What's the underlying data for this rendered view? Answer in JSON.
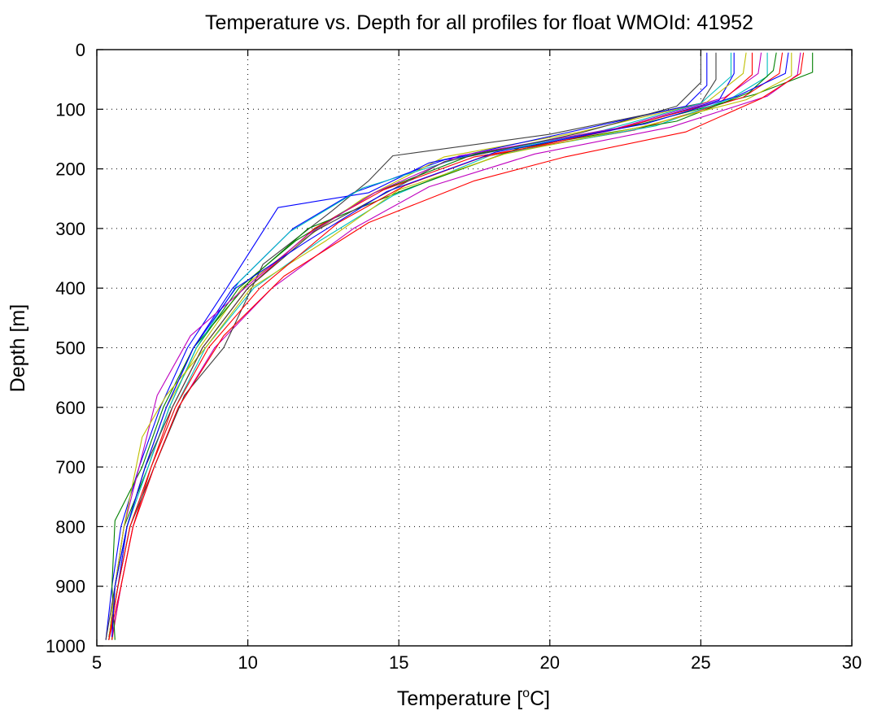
{
  "chart_data": {
    "type": "line",
    "title": "Temperature vs. Depth for all profiles for float WMOId: 41952",
    "xlabel_prefix": "Temperature [",
    "xlabel_sup": "o",
    "xlabel_suffix": "C]",
    "ylabel": "Depth [m]",
    "xlim": [
      5,
      30
    ],
    "ylim": [
      0,
      1000
    ],
    "y_reversed": true,
    "xticks": [
      5,
      10,
      15,
      20,
      25,
      30
    ],
    "yticks": [
      0,
      100,
      200,
      300,
      400,
      500,
      600,
      700,
      800,
      900,
      1000
    ],
    "xtick_labels": [
      "5",
      "10",
      "15",
      "20",
      "25",
      "30"
    ],
    "ytick_labels": [
      "0",
      "100",
      "200",
      "300",
      "400",
      "500",
      "600",
      "700",
      "800",
      "900",
      "1000"
    ],
    "grid": true,
    "legend": "none",
    "colors": [
      "#0000ff",
      "#008000",
      "#ff0000",
      "#00bfbf",
      "#bf00bf",
      "#bfbf00",
      "#404040"
    ],
    "series": [
      {
        "color": "#0000ff",
        "values": [
          [
            26.1,
            5
          ],
          [
            26.1,
            40
          ],
          [
            25.6,
            85
          ],
          [
            22.5,
            130
          ],
          [
            16.5,
            185
          ],
          [
            13.5,
            240
          ],
          [
            11.5,
            300
          ],
          [
            9.5,
            400
          ],
          [
            8.2,
            500
          ],
          [
            7.3,
            600
          ],
          [
            6.6,
            700
          ],
          [
            6.0,
            800
          ],
          [
            5.7,
            900
          ],
          [
            5.4,
            990
          ]
        ]
      },
      {
        "color": "#008000",
        "values": [
          [
            28.7,
            5
          ],
          [
            28.7,
            38
          ],
          [
            26.8,
            75
          ],
          [
            23.0,
            125
          ],
          [
            17.5,
            175
          ],
          [
            14.2,
            240
          ],
          [
            11.6,
            320
          ],
          [
            9.7,
            400
          ],
          [
            8.3,
            500
          ],
          [
            7.4,
            600
          ],
          [
            6.7,
            700
          ],
          [
            5.9,
            800
          ],
          [
            5.6,
            900
          ],
          [
            5.5,
            990
          ]
        ]
      },
      {
        "color": "#ff0000",
        "values": [
          [
            27.7,
            5
          ],
          [
            27.6,
            40
          ],
          [
            26.4,
            80
          ],
          [
            22.8,
            135
          ],
          [
            17.5,
            180
          ],
          [
            14.5,
            235
          ],
          [
            12.2,
            300
          ],
          [
            10.0,
            400
          ],
          [
            8.5,
            500
          ],
          [
            7.5,
            600
          ],
          [
            6.8,
            700
          ],
          [
            6.2,
            800
          ],
          [
            5.8,
            900
          ],
          [
            5.5,
            990
          ]
        ]
      },
      {
        "color": "#00bfbf",
        "values": [
          [
            27.2,
            5
          ],
          [
            27.2,
            45
          ],
          [
            26.0,
            82
          ],
          [
            23.5,
            128
          ],
          [
            18.0,
            178
          ],
          [
            14.8,
            245
          ],
          [
            12.4,
            320
          ],
          [
            10.2,
            400
          ],
          [
            8.6,
            500
          ],
          [
            7.6,
            600
          ],
          [
            6.8,
            700
          ],
          [
            6.1,
            800
          ],
          [
            5.7,
            900
          ],
          [
            5.4,
            985
          ]
        ]
      },
      {
        "color": "#bf00bf",
        "values": [
          [
            28.3,
            5
          ],
          [
            28.2,
            42
          ],
          [
            27.2,
            78
          ],
          [
            24.0,
            130
          ],
          [
            19.5,
            175
          ],
          [
            16.0,
            230
          ],
          [
            13.5,
            300
          ],
          [
            10.8,
            400
          ],
          [
            8.9,
            500
          ],
          [
            7.7,
            600
          ],
          [
            6.9,
            700
          ],
          [
            6.2,
            800
          ],
          [
            5.8,
            900
          ],
          [
            5.5,
            985
          ]
        ]
      },
      {
        "color": "#bfbf00",
        "values": [
          [
            26.5,
            5
          ],
          [
            26.4,
            40
          ],
          [
            25.2,
            88
          ],
          [
            21.0,
            138
          ],
          [
            16.5,
            180
          ],
          [
            13.8,
            250
          ],
          [
            11.8,
            320
          ],
          [
            9.8,
            400
          ],
          [
            8.4,
            500
          ],
          [
            7.3,
            600
          ],
          [
            6.6,
            700
          ],
          [
            6.0,
            800
          ],
          [
            5.6,
            900
          ],
          [
            5.4,
            990
          ]
        ]
      },
      {
        "color": "#404040",
        "values": [
          [
            25.5,
            5
          ],
          [
            25.5,
            50
          ],
          [
            25.0,
            90
          ],
          [
            20.0,
            142
          ],
          [
            14.8,
            178
          ],
          [
            14.0,
            220
          ],
          [
            12.8,
            270
          ],
          [
            10.5,
            360
          ],
          [
            9.2,
            500
          ],
          [
            7.9,
            580
          ],
          [
            6.9,
            700
          ],
          [
            6.1,
            800
          ],
          [
            5.7,
            900
          ],
          [
            5.4,
            985
          ]
        ]
      },
      {
        "color": "#0000ff",
        "values": [
          [
            25.2,
            5
          ],
          [
            25.2,
            60
          ],
          [
            24.5,
            95
          ],
          [
            20.5,
            140
          ],
          [
            16.0,
            190
          ],
          [
            14.0,
            240
          ],
          [
            11.0,
            265
          ],
          [
            9.3,
            400
          ],
          [
            8.0,
            500
          ],
          [
            7.1,
            600
          ],
          [
            6.4,
            700
          ],
          [
            5.8,
            800
          ],
          [
            5.5,
            900
          ],
          [
            5.3,
            990
          ]
        ]
      },
      {
        "color": "#008000",
        "values": [
          [
            27.5,
            5
          ],
          [
            27.4,
            35
          ],
          [
            26.6,
            72
          ],
          [
            24.2,
            120
          ],
          [
            19.0,
            165
          ],
          [
            15.2,
            235
          ],
          [
            12.0,
            300
          ],
          [
            10.2,
            380
          ],
          [
            8.2,
            500
          ],
          [
            7.2,
            600
          ],
          [
            6.5,
            700
          ],
          [
            5.6,
            790
          ],
          [
            5.5,
            900
          ],
          [
            5.6,
            990
          ]
        ]
      },
      {
        "color": "#ff0000",
        "values": [
          [
            28.4,
            5
          ],
          [
            28.3,
            40
          ],
          [
            27.0,
            82
          ],
          [
            24.5,
            138
          ],
          [
            20.5,
            180
          ],
          [
            17.5,
            220
          ],
          [
            14.0,
            290
          ],
          [
            11.2,
            380
          ],
          [
            9.2,
            480
          ],
          [
            7.7,
            600
          ],
          [
            6.9,
            700
          ],
          [
            6.2,
            800
          ],
          [
            5.8,
            900
          ],
          [
            5.4,
            990
          ]
        ]
      },
      {
        "color": "#00bfbf",
        "values": [
          [
            26.0,
            5
          ],
          [
            26.0,
            45
          ],
          [
            25.0,
            90
          ],
          [
            21.8,
            135
          ],
          [
            17.0,
            182
          ],
          [
            13.8,
            232
          ],
          [
            11.4,
            305
          ],
          [
            9.7,
            390
          ],
          [
            8.3,
            500
          ],
          [
            7.4,
            600
          ],
          [
            6.7,
            700
          ],
          [
            6.0,
            800
          ],
          [
            5.6,
            900
          ],
          [
            5.4,
            990
          ]
        ]
      },
      {
        "color": "#bf00bf",
        "values": [
          [
            27.0,
            5
          ],
          [
            26.9,
            40
          ],
          [
            25.8,
            80
          ],
          [
            22.2,
            132
          ],
          [
            17.0,
            178
          ],
          [
            14.2,
            240
          ],
          [
            12.0,
            310
          ],
          [
            9.9,
            400
          ],
          [
            8.1,
            480
          ],
          [
            7.0,
            580
          ],
          [
            6.4,
            700
          ],
          [
            5.9,
            800
          ],
          [
            5.6,
            900
          ],
          [
            5.4,
            990
          ]
        ]
      },
      {
        "color": "#bfbf00",
        "values": [
          [
            28.0,
            5
          ],
          [
            28.0,
            44
          ],
          [
            26.5,
            84
          ],
          [
            23.0,
            130
          ],
          [
            18.5,
            175
          ],
          [
            15.0,
            235
          ],
          [
            12.6,
            320
          ],
          [
            10.1,
            400
          ],
          [
            8.6,
            500
          ],
          [
            7.3,
            580
          ],
          [
            6.5,
            650
          ],
          [
            5.9,
            800
          ],
          [
            5.6,
            900
          ],
          [
            5.4,
            990
          ]
        ]
      },
      {
        "color": "#404040",
        "values": [
          [
            25.0,
            5
          ],
          [
            25.0,
            55
          ],
          [
            24.2,
            95
          ],
          [
            21.0,
            140
          ],
          [
            16.5,
            188
          ],
          [
            14.4,
            245
          ],
          [
            12.2,
            305
          ],
          [
            10.0,
            400
          ],
          [
            8.5,
            500
          ],
          [
            7.5,
            600
          ],
          [
            6.6,
            700
          ],
          [
            6.0,
            800
          ],
          [
            5.6,
            900
          ],
          [
            5.3,
            990
          ]
        ]
      },
      {
        "color": "#ff0000",
        "values": [
          [
            26.7,
            5
          ],
          [
            26.7,
            42
          ],
          [
            25.7,
            86
          ],
          [
            22.0,
            136
          ],
          [
            17.8,
            180
          ],
          [
            15.2,
            228
          ],
          [
            13.0,
            290
          ],
          [
            10.4,
            400
          ],
          [
            8.7,
            500
          ],
          [
            7.6,
            600
          ],
          [
            6.8,
            700
          ],
          [
            6.1,
            800
          ],
          [
            5.7,
            900
          ],
          [
            5.4,
            990
          ]
        ]
      },
      {
        "color": "#0000ff",
        "values": [
          [
            27.9,
            5
          ],
          [
            27.8,
            40
          ],
          [
            26.2,
            78
          ],
          [
            23.2,
            124
          ],
          [
            18.2,
            172
          ],
          [
            14.6,
            238
          ],
          [
            12.0,
            320
          ],
          [
            9.6,
            400
          ],
          [
            8.2,
            500
          ],
          [
            7.3,
            600
          ],
          [
            6.6,
            700
          ],
          [
            6.0,
            800
          ],
          [
            5.6,
            900
          ],
          [
            5.5,
            985
          ]
        ]
      }
    ]
  }
}
